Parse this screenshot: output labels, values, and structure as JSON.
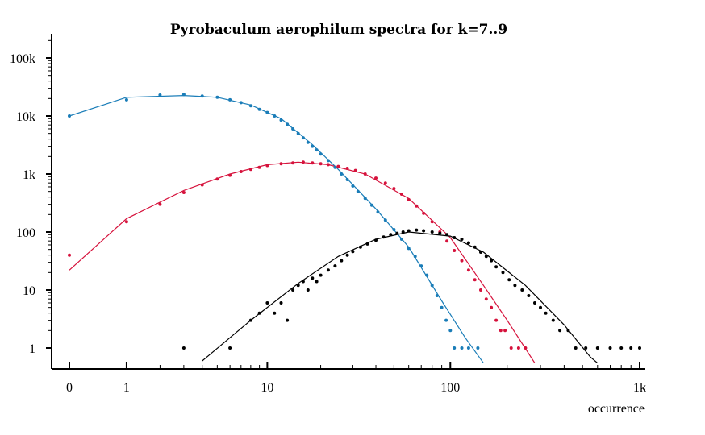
{
  "chart_data": {
    "type": "scatter",
    "title": "Pyrobaculum aerophilum spectra for k=7..9",
    "xlabel": "occurrence",
    "ylabel": "",
    "xscale": "log(1+x)",
    "yscale": "log",
    "xlim": [
      0,
      1100
    ],
    "ylim": [
      0.5,
      250000
    ],
    "x_ticks": [
      {
        "value": 0,
        "label": "0"
      },
      {
        "value": 1,
        "label": "1"
      },
      {
        "value": 10,
        "label": "10"
      },
      {
        "value": 100,
        "label": "100"
      },
      {
        "value": 1000,
        "label": "1k"
      }
    ],
    "y_ticks": [
      {
        "value": 1,
        "label": "1"
      },
      {
        "value": 10,
        "label": "10"
      },
      {
        "value": 100,
        "label": "100"
      },
      {
        "value": 1000,
        "label": "1k"
      },
      {
        "value": 10000,
        "label": "10k"
      },
      {
        "value": 100000,
        "label": "100k"
      }
    ],
    "grid": false,
    "legend": "none",
    "series": [
      {
        "color": "#1a7db8",
        "points": [
          [
            0,
            10000
          ],
          [
            1,
            19000
          ],
          [
            2,
            23000
          ],
          [
            3,
            23500
          ],
          [
            4,
            22000
          ],
          [
            5,
            21000
          ],
          [
            6,
            19000
          ],
          [
            7,
            17000
          ],
          [
            8,
            15000
          ],
          [
            9,
            13000
          ],
          [
            10,
            11500
          ],
          [
            11,
            10000
          ],
          [
            12,
            8500
          ],
          [
            13,
            7200
          ],
          [
            14,
            6000
          ],
          [
            15,
            5000
          ],
          [
            16,
            4200
          ],
          [
            17,
            3500
          ],
          [
            18,
            3000
          ],
          [
            19,
            2600
          ],
          [
            20,
            2200
          ],
          [
            22,
            1700
          ],
          [
            24,
            1300
          ],
          [
            26,
            1000
          ],
          [
            28,
            800
          ],
          [
            30,
            620
          ],
          [
            32,
            500
          ],
          [
            35,
            380
          ],
          [
            38,
            290
          ],
          [
            41,
            220
          ],
          [
            45,
            160
          ],
          [
            50,
            110
          ],
          [
            55,
            75
          ],
          [
            60,
            52
          ],
          [
            65,
            38
          ],
          [
            70,
            26
          ],
          [
            75,
            18
          ],
          [
            80,
            12
          ],
          [
            85,
            8
          ],
          [
            90,
            5
          ],
          [
            95,
            3
          ],
          [
            100,
            2
          ],
          [
            105,
            1
          ],
          [
            115,
            1
          ],
          [
            125,
            1
          ],
          [
            140,
            1
          ]
        ],
        "fit": [
          [
            0,
            10000
          ],
          [
            1,
            21000
          ],
          [
            3,
            22500
          ],
          [
            5,
            21000
          ],
          [
            8,
            15500
          ],
          [
            12,
            9000
          ],
          [
            18,
            3200
          ],
          [
            25,
            1200
          ],
          [
            40,
            250
          ],
          [
            60,
            55
          ],
          [
            90,
            6.5
          ],
          [
            120,
            1.5
          ],
          [
            150,
            0.55
          ]
        ]
      },
      {
        "color": "#d6123c",
        "points": [
          [
            0,
            40
          ],
          [
            1,
            150
          ],
          [
            2,
            300
          ],
          [
            3,
            480
          ],
          [
            4,
            650
          ],
          [
            5,
            820
          ],
          [
            6,
            950
          ],
          [
            7,
            1100
          ],
          [
            8,
            1200
          ],
          [
            9,
            1300
          ],
          [
            10,
            1400
          ],
          [
            12,
            1500
          ],
          [
            14,
            1550
          ],
          [
            16,
            1600
          ],
          [
            18,
            1550
          ],
          [
            20,
            1500
          ],
          [
            22,
            1450
          ],
          [
            25,
            1350
          ],
          [
            28,
            1250
          ],
          [
            31,
            1150
          ],
          [
            35,
            1000
          ],
          [
            40,
            850
          ],
          [
            45,
            700
          ],
          [
            50,
            560
          ],
          [
            55,
            450
          ],
          [
            60,
            360
          ],
          [
            66,
            280
          ],
          [
            72,
            210
          ],
          [
            80,
            150
          ],
          [
            88,
            100
          ],
          [
            96,
            70
          ],
          [
            105,
            48
          ],
          [
            115,
            32
          ],
          [
            125,
            22
          ],
          [
            135,
            15
          ],
          [
            145,
            10
          ],
          [
            155,
            7
          ],
          [
            165,
            5
          ],
          [
            175,
            3
          ],
          [
            185,
            2
          ],
          [
            195,
            2
          ],
          [
            210,
            1
          ],
          [
            230,
            1
          ],
          [
            250,
            1
          ]
        ],
        "fit": [
          [
            0,
            22
          ],
          [
            1,
            170
          ],
          [
            3,
            520
          ],
          [
            6,
            1000
          ],
          [
            10,
            1450
          ],
          [
            15,
            1600
          ],
          [
            22,
            1450
          ],
          [
            35,
            1000
          ],
          [
            60,
            380
          ],
          [
            100,
            80
          ],
          [
            150,
            12
          ],
          [
            200,
            3
          ],
          [
            280,
            0.55
          ]
        ]
      },
      {
        "color": "#000000",
        "points": [
          [
            3,
            1
          ],
          [
            6,
            1
          ],
          [
            8,
            3
          ],
          [
            9,
            4
          ],
          [
            10,
            6
          ],
          [
            11,
            4
          ],
          [
            12,
            6
          ],
          [
            13,
            3
          ],
          [
            14,
            10
          ],
          [
            15,
            12
          ],
          [
            16,
            14
          ],
          [
            17,
            10
          ],
          [
            18,
            16
          ],
          [
            19,
            14
          ],
          [
            20,
            18
          ],
          [
            22,
            22
          ],
          [
            24,
            26
          ],
          [
            26,
            32
          ],
          [
            28,
            40
          ],
          [
            30,
            46
          ],
          [
            33,
            55
          ],
          [
            36,
            62
          ],
          [
            40,
            72
          ],
          [
            44,
            82
          ],
          [
            48,
            90
          ],
          [
            52,
            95
          ],
          [
            56,
            100
          ],
          [
            60,
            105
          ],
          [
            66,
            108
          ],
          [
            72,
            105
          ],
          [
            80,
            100
          ],
          [
            88,
            95
          ],
          [
            96,
            90
          ],
          [
            105,
            80
          ],
          [
            115,
            75
          ],
          [
            125,
            65
          ],
          [
            135,
            55
          ],
          [
            145,
            45
          ],
          [
            155,
            38
          ],
          [
            165,
            32
          ],
          [
            175,
            25
          ],
          [
            190,
            20
          ],
          [
            205,
            15
          ],
          [
            220,
            12
          ],
          [
            240,
            10
          ],
          [
            260,
            8
          ],
          [
            280,
            6
          ],
          [
            300,
            5
          ],
          [
            320,
            4
          ],
          [
            350,
            3
          ],
          [
            380,
            2
          ],
          [
            420,
            2
          ],
          [
            460,
            1
          ],
          [
            520,
            1
          ],
          [
            600,
            1
          ],
          [
            700,
            1
          ],
          [
            800,
            1
          ],
          [
            900,
            1
          ],
          [
            1000,
            1
          ]
        ],
        "fit": [
          [
            4,
            0.6
          ],
          [
            8,
            3
          ],
          [
            15,
            13
          ],
          [
            25,
            38
          ],
          [
            40,
            75
          ],
          [
            60,
            100
          ],
          [
            100,
            85
          ],
          [
            150,
            45
          ],
          [
            250,
            12
          ],
          [
            400,
            2.5
          ],
          [
            550,
            0.7
          ],
          [
            600,
            0.55
          ]
        ]
      }
    ]
  }
}
